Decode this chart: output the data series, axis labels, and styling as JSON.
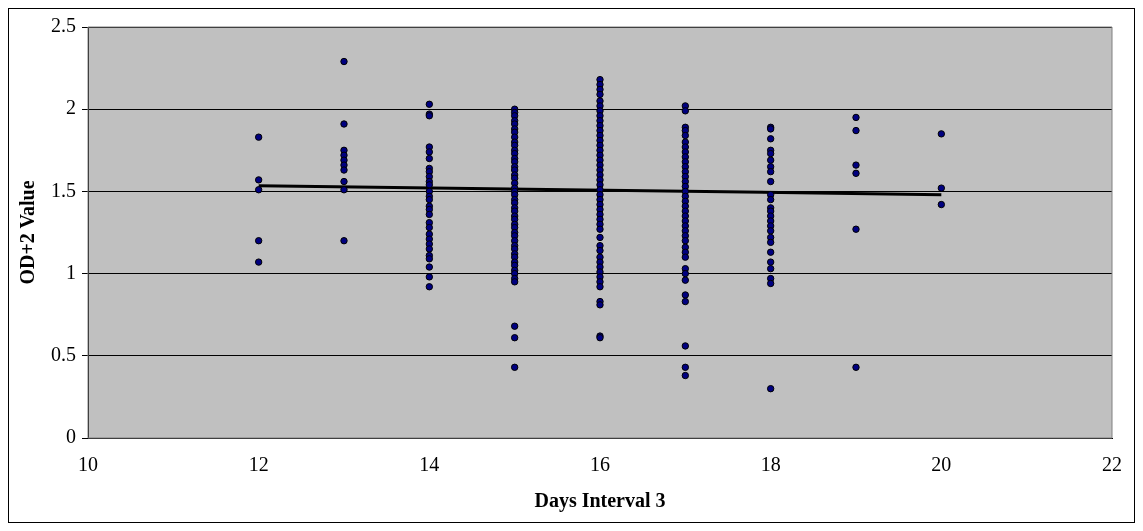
{
  "chart_data": {
    "type": "scatter",
    "xlabel": "Days Interval 3",
    "ylabel": "OD+2 Value",
    "xlim": [
      10,
      22
    ],
    "xticks": [
      10,
      12,
      14,
      16,
      18,
      20,
      22
    ],
    "ylim": [
      0,
      2.5
    ],
    "yticks": [
      0,
      0.5,
      1,
      1.5,
      2,
      2.5
    ],
    "grid": "y",
    "legend": false,
    "marker": "circle",
    "series": [
      {
        "color": "#000080",
        "x": [
          12,
          12,
          12,
          12,
          12,
          13,
          13,
          13,
          13,
          13,
          13,
          13,
          13,
          13,
          13,
          14,
          14,
          14,
          14,
          14,
          14,
          14,
          14,
          14,
          14,
          14,
          14,
          14,
          14,
          14,
          14,
          14,
          14,
          14,
          14,
          14,
          14,
          14,
          14,
          14,
          14,
          14,
          14,
          15,
          15,
          15,
          15,
          15,
          15,
          15,
          15,
          15,
          15,
          15,
          15,
          15,
          15,
          15,
          15,
          15,
          15,
          15,
          15,
          15,
          15,
          15,
          15,
          15,
          15,
          15,
          15,
          15,
          15,
          15,
          15,
          15,
          15,
          15,
          15,
          15,
          15,
          15,
          15,
          15,
          15,
          15,
          15,
          15,
          15,
          16,
          16,
          16,
          16,
          16,
          16,
          16,
          16,
          16,
          16,
          16,
          16,
          16,
          16,
          16,
          16,
          16,
          16,
          16,
          16,
          16,
          16,
          16,
          16,
          16,
          16,
          16,
          16,
          16,
          16,
          16,
          16,
          16,
          16,
          16,
          16,
          16,
          16,
          16,
          16,
          16,
          16,
          16,
          16,
          16,
          17,
          17,
          17,
          17,
          17,
          17,
          17,
          17,
          17,
          17,
          17,
          17,
          17,
          17,
          17,
          17,
          17,
          17,
          17,
          17,
          17,
          17,
          17,
          17,
          17,
          17,
          17,
          17,
          17,
          17,
          17,
          17,
          17,
          17,
          17,
          17,
          17,
          18,
          18,
          18,
          18,
          18,
          18,
          18,
          18,
          18,
          18,
          18,
          18,
          18,
          18,
          18,
          18,
          18,
          18,
          18,
          18,
          18,
          18,
          18,
          18,
          18,
          19,
          19,
          19,
          19,
          19,
          19,
          20,
          20,
          20
        ],
        "values": [
          1.83,
          1.57,
          1.51,
          1.2,
          1.07,
          2.29,
          1.91,
          1.75,
          1.72,
          1.69,
          1.66,
          1.63,
          1.56,
          1.51,
          1.2,
          2.03,
          1.97,
          1.96,
          1.77,
          1.74,
          1.7,
          1.64,
          1.62,
          1.59,
          1.56,
          1.54,
          1.5,
          1.47,
          1.45,
          1.41,
          1.39,
          1.36,
          1.31,
          1.28,
          1.24,
          1.21,
          1.18,
          1.15,
          1.11,
          1.09,
          1.04,
          0.98,
          0.92,
          2.0,
          1.98,
          1.96,
          1.93,
          1.91,
          1.88,
          1.86,
          1.83,
          1.8,
          1.78,
          1.75,
          1.73,
          1.7,
          1.68,
          1.65,
          1.63,
          1.6,
          1.58,
          1.55,
          1.52,
          1.5,
          1.48,
          1.45,
          1.43,
          1.4,
          1.38,
          1.35,
          1.33,
          1.3,
          1.28,
          1.25,
          1.23,
          1.2,
          1.17,
          1.15,
          1.12,
          1.1,
          1.07,
          1.05,
          1.02,
          1.0,
          0.97,
          0.95,
          0.68,
          0.61,
          0.43,
          2.18,
          2.15,
          2.12,
          2.09,
          2.05,
          2.02,
          1.99,
          1.96,
          1.93,
          1.9,
          1.87,
          1.84,
          1.81,
          1.78,
          1.75,
          1.72,
          1.69,
          1.66,
          1.63,
          1.6,
          1.57,
          1.54,
          1.51,
          1.48,
          1.45,
          1.42,
          1.39,
          1.36,
          1.33,
          1.3,
          1.27,
          1.22,
          1.17,
          1.14,
          1.1,
          1.07,
          1.04,
          1.01,
          0.98,
          0.95,
          0.92,
          0.83,
          0.81,
          0.62,
          0.61,
          2.02,
          1.99,
          1.89,
          1.87,
          1.84,
          1.8,
          1.77,
          1.74,
          1.71,
          1.68,
          1.65,
          1.62,
          1.59,
          1.56,
          1.53,
          1.5,
          1.47,
          1.44,
          1.41,
          1.38,
          1.35,
          1.32,
          1.29,
          1.26,
          1.23,
          1.2,
          1.16,
          1.13,
          1.1,
          1.03,
          1.0,
          0.96,
          0.87,
          0.83,
          0.56,
          0.43,
          0.38,
          1.89,
          1.88,
          1.82,
          1.75,
          1.73,
          1.69,
          1.65,
          1.62,
          1.56,
          1.48,
          1.45,
          1.4,
          1.38,
          1.35,
          1.32,
          1.29,
          1.26,
          1.22,
          1.19,
          1.13,
          1.07,
          1.03,
          0.97,
          0.94,
          0.3,
          1.95,
          1.87,
          1.66,
          1.61,
          1.27,
          0.43,
          1.85,
          1.52,
          1.42
        ]
      },
      {
        "type": "line",
        "color": "#000000",
        "x": [
          12,
          20
        ],
        "values": [
          1.535,
          1.48
        ],
        "marker": "none"
      }
    ]
  }
}
